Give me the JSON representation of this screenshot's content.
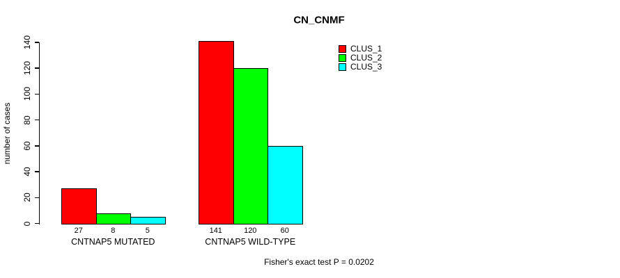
{
  "chart_data": {
    "type": "bar",
    "title": "CN_CNMF",
    "xlabel": "",
    "ylabel": "number of cases",
    "categories": [
      "CNTNAP5 MUTATED",
      "CNTNAP5 WILD-TYPE"
    ],
    "series": [
      {
        "name": "CLUS_1",
        "color": "#ff0000",
        "values": [
          27,
          141
        ]
      },
      {
        "name": "CLUS_2",
        "color": "#00ff00",
        "values": [
          8,
          120
        ]
      },
      {
        "name": "CLUS_3",
        "color": "#00ffff",
        "values": [
          5,
          60
        ]
      }
    ],
    "bar_value_labels": [
      [
        27,
        8,
        5
      ],
      [
        141,
        120,
        60
      ]
    ],
    "yticks": [
      0,
      20,
      40,
      60,
      80,
      100,
      120,
      140
    ],
    "ylim": [
      0,
      140
    ],
    "grid": false,
    "legend_position": "top-right",
    "annotation": "Fisher's exact test P = 0.0202"
  },
  "colors": {
    "background": "#ffffff",
    "axis": "#000000",
    "clus_1": "#ff0000",
    "clus_2": "#00ff00",
    "clus_3": "#00ffff"
  }
}
